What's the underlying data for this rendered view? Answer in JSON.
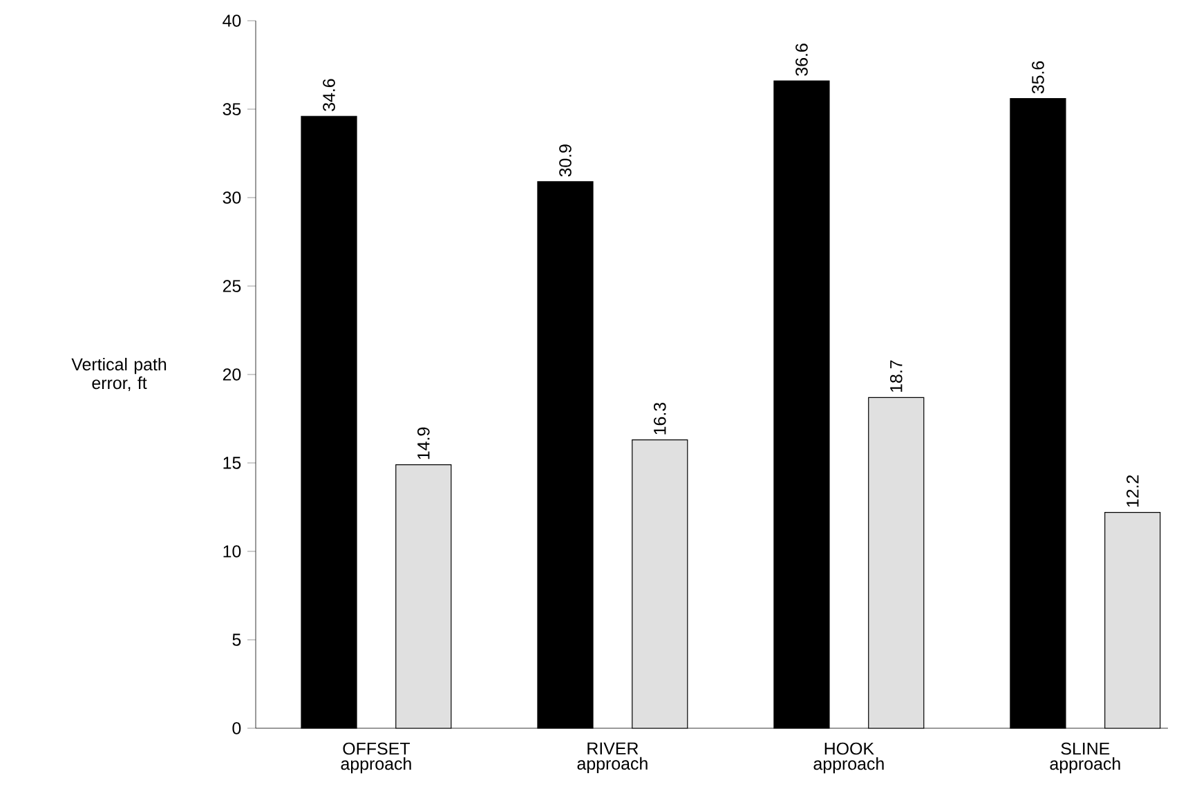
{
  "chart_data": {
    "type": "bar",
    "ylabel": "Vertical path error, ft",
    "categories": [
      "OFFSET approach",
      "RIVER approach",
      "HOOK approach",
      "SLINE approach"
    ],
    "series": [
      {
        "color": "#000000",
        "values": [
          34.6,
          30.9,
          36.6,
          35.6
        ]
      },
      {
        "color": "#e0e0e0",
        "values": [
          14.9,
          16.3,
          18.7,
          12.2
        ]
      }
    ],
    "ylim": [
      0,
      40
    ],
    "yticks": [
      0,
      5,
      10,
      15,
      20,
      25,
      30,
      35,
      40
    ],
    "data_labels": true
  }
}
